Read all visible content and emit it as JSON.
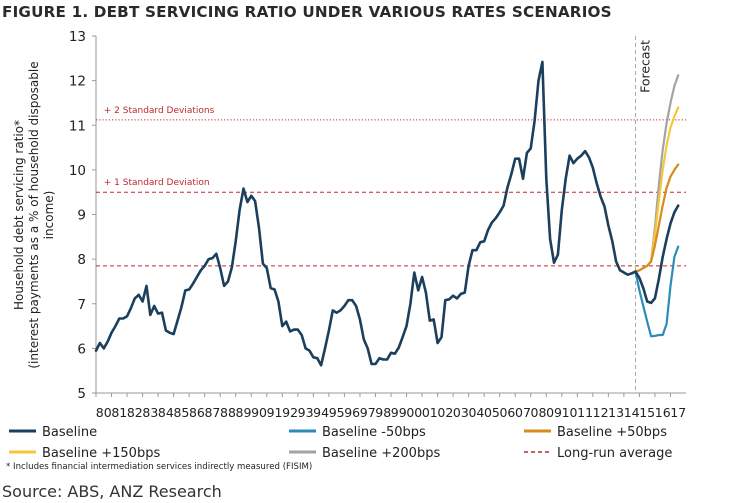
{
  "chart_data": {
    "type": "line",
    "title": "FIGURE 1. DEBT SERVICING RATIO UNDER VARIOUS RATES SCENARIOS",
    "ylabel_line1": "Household debt servicing ratio*",
    "ylabel_line2": "(interest payments as a % of household disposable",
    "ylabel_line3": "income)",
    "xlabel": "",
    "ylim": [
      5,
      13
    ],
    "yticks": [
      5,
      6,
      7,
      8,
      9,
      10,
      11,
      12,
      13
    ],
    "xlim": [
      1980,
      2018
    ],
    "xtick_labels": [
      "80",
      "81",
      "82",
      "83",
      "84",
      "85",
      "86",
      "87",
      "88",
      "89",
      "90",
      "91",
      "92",
      "93",
      "94",
      "95",
      "96",
      "97",
      "98",
      "99",
      "00",
      "01",
      "02",
      "03",
      "04",
      "05",
      "06",
      "07",
      "08",
      "09",
      "10",
      "11",
      "12",
      "13",
      "14",
      "15",
      "16",
      "17"
    ],
    "grid": false,
    "legend_position": "bottom",
    "colors": {
      "baseline": "#1b3f5c",
      "minus50": "#2b8cba",
      "plus50": "#d98a1c",
      "plus150": "#f5c63b",
      "plus200": "#a3a3a3",
      "longrun": "#c0282d",
      "forecast_line": "#a8a8a8"
    },
    "forecast": {
      "label": "Forecast",
      "x": 2014.75
    },
    "reference_lines": [
      {
        "name": "+ 2 Standard Deviations",
        "y": 11.12,
        "style": "dotted"
      },
      {
        "name": "+ 1 Standard Deviation",
        "y": 9.5,
        "style": "dashed"
      },
      {
        "name": "Long-run average",
        "y": 7.85,
        "style": "dashed"
      }
    ],
    "series": [
      {
        "name": "Baseline",
        "key": "baseline",
        "points": [
          [
            1980.0,
            5.95
          ],
          [
            1980.25,
            6.12
          ],
          [
            1980.5,
            6.0
          ],
          [
            1980.75,
            6.15
          ],
          [
            1981.0,
            6.35
          ],
          [
            1981.25,
            6.5
          ],
          [
            1981.5,
            6.67
          ],
          [
            1981.75,
            6.67
          ],
          [
            1982.0,
            6.72
          ],
          [
            1982.25,
            6.9
          ],
          [
            1982.5,
            7.12
          ],
          [
            1982.75,
            7.2
          ],
          [
            1983.0,
            7.05
          ],
          [
            1983.25,
            7.4
          ],
          [
            1983.5,
            6.75
          ],
          [
            1983.75,
            6.95
          ],
          [
            1984.0,
            6.78
          ],
          [
            1984.25,
            6.8
          ],
          [
            1984.5,
            6.4
          ],
          [
            1984.75,
            6.35
          ],
          [
            1985.0,
            6.32
          ],
          [
            1985.25,
            6.62
          ],
          [
            1985.5,
            6.92
          ],
          [
            1985.75,
            7.3
          ],
          [
            1986.0,
            7.32
          ],
          [
            1986.25,
            7.45
          ],
          [
            1986.5,
            7.6
          ],
          [
            1986.75,
            7.75
          ],
          [
            1987.0,
            7.85
          ],
          [
            1987.25,
            8.0
          ],
          [
            1987.5,
            8.02
          ],
          [
            1987.75,
            8.12
          ],
          [
            1988.0,
            7.8
          ],
          [
            1988.25,
            7.4
          ],
          [
            1988.5,
            7.5
          ],
          [
            1988.75,
            7.82
          ],
          [
            1989.0,
            8.4
          ],
          [
            1989.25,
            9.1
          ],
          [
            1989.5,
            9.58
          ],
          [
            1989.75,
            9.28
          ],
          [
            1990.0,
            9.42
          ],
          [
            1990.25,
            9.3
          ],
          [
            1990.5,
            8.7
          ],
          [
            1990.75,
            7.9
          ],
          [
            1991.0,
            7.8
          ],
          [
            1991.25,
            7.35
          ],
          [
            1991.5,
            7.32
          ],
          [
            1991.75,
            7.05
          ],
          [
            1992.0,
            6.5
          ],
          [
            1992.25,
            6.6
          ],
          [
            1992.5,
            6.38
          ],
          [
            1992.75,
            6.42
          ],
          [
            1993.0,
            6.42
          ],
          [
            1993.25,
            6.3
          ],
          [
            1993.5,
            6.0
          ],
          [
            1993.75,
            5.95
          ],
          [
            1994.0,
            5.8
          ],
          [
            1994.25,
            5.78
          ],
          [
            1994.5,
            5.62
          ],
          [
            1994.75,
            6.0
          ],
          [
            1995.0,
            6.4
          ],
          [
            1995.25,
            6.85
          ],
          [
            1995.5,
            6.8
          ],
          [
            1995.75,
            6.85
          ],
          [
            1996.0,
            6.95
          ],
          [
            1996.25,
            7.08
          ],
          [
            1996.5,
            7.08
          ],
          [
            1996.75,
            6.95
          ],
          [
            1997.0,
            6.65
          ],
          [
            1997.25,
            6.2
          ],
          [
            1997.5,
            6.0
          ],
          [
            1997.75,
            5.65
          ],
          [
            1998.0,
            5.65
          ],
          [
            1998.25,
            5.78
          ],
          [
            1998.5,
            5.75
          ],
          [
            1998.75,
            5.75
          ],
          [
            1999.0,
            5.9
          ],
          [
            1999.25,
            5.88
          ],
          [
            1999.5,
            6.02
          ],
          [
            1999.75,
            6.25
          ],
          [
            2000.0,
            6.5
          ],
          [
            2000.25,
            7.0
          ],
          [
            2000.5,
            7.7
          ],
          [
            2000.75,
            7.3
          ],
          [
            2001.0,
            7.6
          ],
          [
            2001.25,
            7.25
          ],
          [
            2001.5,
            6.62
          ],
          [
            2001.75,
            6.65
          ],
          [
            2002.0,
            6.12
          ],
          [
            2002.25,
            6.25
          ],
          [
            2002.5,
            7.08
          ],
          [
            2002.75,
            7.1
          ],
          [
            2003.0,
            7.18
          ],
          [
            2003.25,
            7.12
          ],
          [
            2003.5,
            7.22
          ],
          [
            2003.75,
            7.25
          ],
          [
            2004.0,
            7.85
          ],
          [
            2004.25,
            8.2
          ],
          [
            2004.5,
            8.2
          ],
          [
            2004.75,
            8.38
          ],
          [
            2005.0,
            8.4
          ],
          [
            2005.25,
            8.65
          ],
          [
            2005.5,
            8.82
          ],
          [
            2005.75,
            8.92
          ],
          [
            2006.0,
            9.05
          ],
          [
            2006.25,
            9.2
          ],
          [
            2006.5,
            9.6
          ],
          [
            2006.75,
            9.9
          ],
          [
            2007.0,
            10.25
          ],
          [
            2007.25,
            10.25
          ],
          [
            2007.5,
            9.8
          ],
          [
            2007.75,
            10.38
          ],
          [
            2008.0,
            10.48
          ],
          [
            2008.25,
            11.1
          ],
          [
            2008.5,
            12.0
          ],
          [
            2008.75,
            12.42
          ],
          [
            2009.0,
            9.8
          ],
          [
            2009.25,
            8.45
          ],
          [
            2009.5,
            7.92
          ],
          [
            2009.75,
            8.1
          ],
          [
            2010.0,
            9.1
          ],
          [
            2010.25,
            9.8
          ],
          [
            2010.5,
            10.32
          ],
          [
            2010.75,
            10.15
          ],
          [
            2011.0,
            10.25
          ],
          [
            2011.25,
            10.32
          ],
          [
            2011.5,
            10.42
          ],
          [
            2011.75,
            10.28
          ],
          [
            2012.0,
            10.05
          ],
          [
            2012.25,
            9.7
          ],
          [
            2012.5,
            9.4
          ],
          [
            2012.75,
            9.18
          ],
          [
            2013.0,
            8.75
          ],
          [
            2013.25,
            8.4
          ],
          [
            2013.5,
            7.95
          ],
          [
            2013.75,
            7.75
          ],
          [
            2014.0,
            7.7
          ],
          [
            2014.25,
            7.65
          ],
          [
            2014.5,
            7.68
          ],
          [
            2014.75,
            7.72
          ],
          [
            2015.0,
            7.58
          ],
          [
            2015.25,
            7.35
          ],
          [
            2015.5,
            7.05
          ],
          [
            2015.75,
            7.02
          ],
          [
            2016.0,
            7.12
          ],
          [
            2016.25,
            7.55
          ],
          [
            2016.5,
            8.05
          ],
          [
            2016.75,
            8.45
          ],
          [
            2017.0,
            8.8
          ],
          [
            2017.25,
            9.05
          ],
          [
            2017.5,
            9.2
          ]
        ]
      },
      {
        "name": "Baseline -50bps",
        "key": "minus50",
        "points": [
          [
            2014.75,
            7.72
          ],
          [
            2015.0,
            7.3
          ],
          [
            2015.25,
            6.95
          ],
          [
            2015.5,
            6.6
          ],
          [
            2015.75,
            6.27
          ],
          [
            2016.0,
            6.28
          ],
          [
            2016.25,
            6.3
          ],
          [
            2016.5,
            6.3
          ],
          [
            2016.75,
            6.55
          ],
          [
            2017.0,
            7.4
          ],
          [
            2017.25,
            8.05
          ],
          [
            2017.5,
            8.28
          ]
        ]
      },
      {
        "name": "Baseline +50bps",
        "key": "plus50",
        "points": [
          [
            2014.75,
            7.72
          ],
          [
            2015.0,
            7.75
          ],
          [
            2015.25,
            7.8
          ],
          [
            2015.5,
            7.85
          ],
          [
            2015.75,
            7.95
          ],
          [
            2016.0,
            8.3
          ],
          [
            2016.25,
            8.75
          ],
          [
            2016.5,
            9.2
          ],
          [
            2016.75,
            9.6
          ],
          [
            2017.0,
            9.85
          ],
          [
            2017.25,
            10.0
          ],
          [
            2017.5,
            10.12
          ]
        ]
      },
      {
        "name": "Baseline +150bps",
        "key": "plus150",
        "points": [
          [
            2014.75,
            7.72
          ],
          [
            2015.0,
            7.75
          ],
          [
            2015.25,
            7.8
          ],
          [
            2015.5,
            7.85
          ],
          [
            2015.75,
            7.95
          ],
          [
            2016.0,
            8.55
          ],
          [
            2016.25,
            9.3
          ],
          [
            2016.5,
            10.0
          ],
          [
            2016.75,
            10.55
          ],
          [
            2017.0,
            10.95
          ],
          [
            2017.25,
            11.2
          ],
          [
            2017.5,
            11.4
          ]
        ]
      },
      {
        "name": "Baseline +200bps",
        "key": "plus200",
        "points": [
          [
            2014.75,
            7.72
          ],
          [
            2015.0,
            7.75
          ],
          [
            2015.25,
            7.8
          ],
          [
            2015.5,
            7.85
          ],
          [
            2015.75,
            7.95
          ],
          [
            2016.0,
            8.7
          ],
          [
            2016.25,
            9.65
          ],
          [
            2016.5,
            10.45
          ],
          [
            2016.75,
            11.05
          ],
          [
            2017.0,
            11.5
          ],
          [
            2017.25,
            11.88
          ],
          [
            2017.5,
            12.12
          ]
        ]
      }
    ],
    "legend": [
      {
        "label": "Baseline",
        "key": "baseline",
        "style": "solid"
      },
      {
        "label": "Baseline -50bps",
        "key": "minus50",
        "style": "solid"
      },
      {
        "label": "Baseline +50bps",
        "key": "plus50",
        "style": "solid"
      },
      {
        "label": "Baseline +150bps",
        "key": "plus150",
        "style": "solid"
      },
      {
        "label": "Baseline +200bps",
        "key": "plus200",
        "style": "solid"
      },
      {
        "label": "Long-run average",
        "key": "longrun",
        "style": "dashed"
      }
    ]
  },
  "footnote": "* Includes financial intermediation  services indirectly measured (FISIM)",
  "source": "Source: ABS, ANZ Research"
}
